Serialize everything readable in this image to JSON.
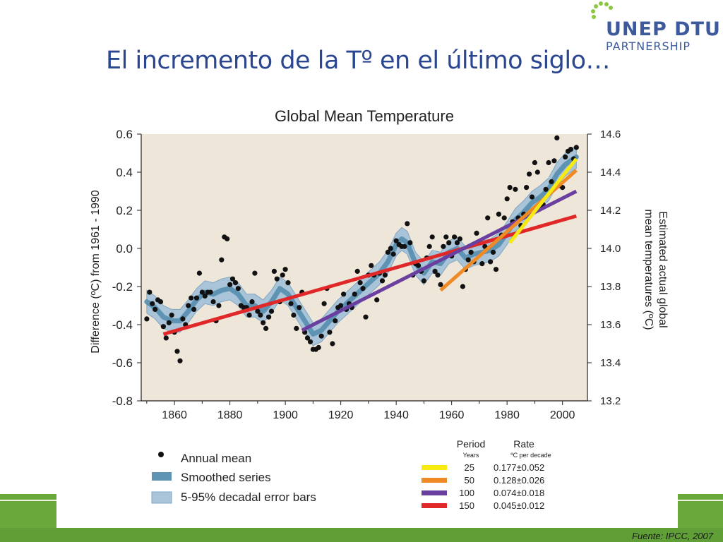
{
  "slide": {
    "title": "El incremento de la Tº en el último siglo…",
    "source": "Fuente: IPCC, 2007"
  },
  "logo": {
    "line1": "UNEP DTU",
    "line2": "PARTNERSHIP"
  },
  "colors": {
    "title": "#2a4690",
    "plot_bg": "#efe6da",
    "band_outer": "#a9c4d8",
    "band_inner": "#5e93b3",
    "green": "#5f9f35"
  },
  "chart_data": {
    "type": "scatter",
    "title": "Global Mean Temperature",
    "ylabel": "Difference (ºC) from 1961 - 1990",
    "y2label_line1": "Estimated actual global",
    "y2label_line2": "mean temperatures (ºC)",
    "xlim": [
      1848,
      2009
    ],
    "ylim": [
      -0.8,
      0.6
    ],
    "y2lim": [
      13.2,
      14.6
    ],
    "xticks": [
      1860,
      1880,
      1900,
      1920,
      1940,
      1960,
      1980,
      2000
    ],
    "yticks": [
      -0.8,
      -0.6,
      -0.4,
      -0.2,
      0.0,
      0.2,
      0.4,
      0.6
    ],
    "ytick_labels": [
      "-0.8",
      "-0.6",
      "-0.4",
      "-0.2",
      "0.0",
      "0.2",
      "0.4",
      "0.6"
    ],
    "y2ticks": [
      13.2,
      13.4,
      13.6,
      13.8,
      14.0,
      14.2,
      14.4,
      14.6
    ],
    "y2tick_labels": [
      "13.2",
      "13.4",
      "13.6",
      "13.8",
      "14.0",
      "14.2",
      "14.4",
      "14.6"
    ],
    "annual_mean": [
      [
        1850,
        -0.37
      ],
      [
        1851,
        -0.23
      ],
      [
        1852,
        -0.29
      ],
      [
        1853,
        -0.32
      ],
      [
        1854,
        -0.27
      ],
      [
        1855,
        -0.28
      ],
      [
        1856,
        -0.41
      ],
      [
        1857,
        -0.47
      ],
      [
        1858,
        -0.39
      ],
      [
        1859,
        -0.35
      ],
      [
        1860,
        -0.44
      ],
      [
        1861,
        -0.54
      ],
      [
        1862,
        -0.59
      ],
      [
        1863,
        -0.37
      ],
      [
        1864,
        -0.4
      ],
      [
        1865,
        -0.3
      ],
      [
        1866,
        -0.26
      ],
      [
        1867,
        -0.32
      ],
      [
        1868,
        -0.26
      ],
      [
        1869,
        -0.13
      ],
      [
        1870,
        -0.23
      ],
      [
        1871,
        -0.25
      ],
      [
        1872,
        -0.23
      ],
      [
        1873,
        -0.23
      ],
      [
        1874,
        -0.28
      ],
      [
        1875,
        -0.38
      ],
      [
        1876,
        -0.3
      ],
      [
        1877,
        -0.06
      ],
      [
        1878,
        0.06
      ],
      [
        1879,
        0.05
      ],
      [
        1880,
        -0.19
      ],
      [
        1881,
        -0.16
      ],
      [
        1882,
        -0.18
      ],
      [
        1883,
        -0.21
      ],
      [
        1884,
        -0.3
      ],
      [
        1885,
        -0.31
      ],
      [
        1886,
        -0.31
      ],
      [
        1887,
        -0.35
      ],
      [
        1888,
        -0.28
      ],
      [
        1889,
        -0.13
      ],
      [
        1890,
        -0.33
      ],
      [
        1891,
        -0.35
      ],
      [
        1892,
        -0.39
      ],
      [
        1893,
        -0.42
      ],
      [
        1894,
        -0.36
      ],
      [
        1895,
        -0.33
      ],
      [
        1896,
        -0.12
      ],
      [
        1897,
        -0.16
      ],
      [
        1898,
        -0.28
      ],
      [
        1899,
        -0.14
      ],
      [
        1900,
        -0.11
      ],
      [
        1901,
        -0.18
      ],
      [
        1902,
        -0.29
      ],
      [
        1903,
        -0.35
      ],
      [
        1904,
        -0.42
      ],
      [
        1905,
        -0.31
      ],
      [
        1906,
        -0.23
      ],
      [
        1907,
        -0.44
      ],
      [
        1908,
        -0.47
      ],
      [
        1909,
        -0.49
      ],
      [
        1910,
        -0.53
      ],
      [
        1911,
        -0.53
      ],
      [
        1912,
        -0.52
      ],
      [
        1913,
        -0.46
      ],
      [
        1914,
        -0.29
      ],
      [
        1915,
        -0.21
      ],
      [
        1916,
        -0.44
      ],
      [
        1917,
        -0.5
      ],
      [
        1918,
        -0.38
      ],
      [
        1919,
        -0.31
      ],
      [
        1920,
        -0.3
      ],
      [
        1921,
        -0.24
      ],
      [
        1922,
        -0.32
      ],
      [
        1923,
        -0.29
      ],
      [
        1924,
        -0.31
      ],
      [
        1925,
        -0.24
      ],
      [
        1926,
        -0.12
      ],
      [
        1927,
        -0.18
      ],
      [
        1928,
        -0.21
      ],
      [
        1929,
        -0.36
      ],
      [
        1930,
        -0.14
      ],
      [
        1931,
        -0.09
      ],
      [
        1932,
        -0.14
      ],
      [
        1933,
        -0.27
      ],
      [
        1934,
        -0.13
      ],
      [
        1935,
        -0.17
      ],
      [
        1936,
        -0.14
      ],
      [
        1937,
        -0.02
      ],
      [
        1938,
        0.0
      ],
      [
        1939,
        -0.03
      ],
      [
        1940,
        0.04
      ],
      [
        1941,
        0.02
      ],
      [
        1942,
        0.01
      ],
      [
        1943,
        0.01
      ],
      [
        1944,
        0.13
      ],
      [
        1945,
        0.03
      ],
      [
        1946,
        -0.14
      ],
      [
        1947,
        -0.08
      ],
      [
        1948,
        -0.09
      ],
      [
        1949,
        -0.12
      ],
      [
        1950,
        -0.17
      ],
      [
        1951,
        -0.05
      ],
      [
        1952,
        0.01
      ],
      [
        1953,
        0.06
      ],
      [
        1954,
        -0.12
      ],
      [
        1955,
        -0.14
      ],
      [
        1956,
        -0.19
      ],
      [
        1957,
        0.01
      ],
      [
        1958,
        0.06
      ],
      [
        1959,
        0.03
      ],
      [
        1960,
        -0.04
      ],
      [
        1961,
        0.06
      ],
      [
        1962,
        0.03
      ],
      [
        1963,
        0.05
      ],
      [
        1964,
        -0.2
      ],
      [
        1965,
        -0.11
      ],
      [
        1966,
        -0.06
      ],
      [
        1967,
        -0.02
      ],
      [
        1968,
        -0.07
      ],
      [
        1969,
        0.08
      ],
      [
        1970,
        0.03
      ],
      [
        1971,
        -0.08
      ],
      [
        1972,
        0.01
      ],
      [
        1973,
        0.16
      ],
      [
        1974,
        -0.07
      ],
      [
        1975,
        -0.02
      ],
      [
        1976,
        -0.11
      ],
      [
        1977,
        0.18
      ],
      [
        1978,
        0.07
      ],
      [
        1979,
        0.16
      ],
      [
        1980,
        0.26
      ],
      [
        1981,
        0.32
      ],
      [
        1982,
        0.14
      ],
      [
        1983,
        0.31
      ],
      [
        1984,
        0.16
      ],
      [
        1985,
        0.12
      ],
      [
        1986,
        0.18
      ],
      [
        1987,
        0.32
      ],
      [
        1988,
        0.39
      ],
      [
        1989,
        0.27
      ],
      [
        1990,
        0.45
      ],
      [
        1991,
        0.4
      ],
      [
        1992,
        0.22
      ],
      [
        1993,
        0.23
      ],
      [
        1994,
        0.31
      ],
      [
        1995,
        0.45
      ],
      [
        1996,
        0.35
      ],
      [
        1997,
        0.46
      ],
      [
        1998,
        0.58
      ],
      [
        1999,
        0.33
      ],
      [
        2000,
        0.32
      ],
      [
        2001,
        0.48
      ],
      [
        2002,
        0.51
      ],
      [
        2003,
        0.52
      ],
      [
        2004,
        0.47
      ],
      [
        2005,
        0.53
      ]
    ],
    "smoothed_series": [
      [
        1850,
        -0.28
      ],
      [
        1853,
        -0.31
      ],
      [
        1856,
        -0.36
      ],
      [
        1859,
        -0.38
      ],
      [
        1862,
        -0.38
      ],
      [
        1865,
        -0.33
      ],
      [
        1868,
        -0.27
      ],
      [
        1871,
        -0.23
      ],
      [
        1874,
        -0.24
      ],
      [
        1877,
        -0.22
      ],
      [
        1880,
        -0.21
      ],
      [
        1883,
        -0.24
      ],
      [
        1886,
        -0.3
      ],
      [
        1889,
        -0.3
      ],
      [
        1892,
        -0.33
      ],
      [
        1895,
        -0.28
      ],
      [
        1898,
        -0.21
      ],
      [
        1901,
        -0.24
      ],
      [
        1904,
        -0.31
      ],
      [
        1907,
        -0.38
      ],
      [
        1910,
        -0.45
      ],
      [
        1913,
        -0.43
      ],
      [
        1916,
        -0.38
      ],
      [
        1919,
        -0.33
      ],
      [
        1922,
        -0.29
      ],
      [
        1925,
        -0.25
      ],
      [
        1928,
        -0.21
      ],
      [
        1931,
        -0.17
      ],
      [
        1934,
        -0.13
      ],
      [
        1937,
        -0.07
      ],
      [
        1940,
        0.02
      ],
      [
        1942,
        0.05
      ],
      [
        1944,
        0.03
      ],
      [
        1947,
        -0.08
      ],
      [
        1950,
        -0.13
      ],
      [
        1953,
        -0.07
      ],
      [
        1956,
        -0.08
      ],
      [
        1959,
        -0.02
      ],
      [
        1962,
        0.0
      ],
      [
        1965,
        -0.05
      ],
      [
        1968,
        -0.03
      ],
      [
        1971,
        -0.02
      ],
      [
        1974,
        -0.01
      ],
      [
        1977,
        0.02
      ],
      [
        1980,
        0.08
      ],
      [
        1983,
        0.15
      ],
      [
        1986,
        0.19
      ],
      [
        1989,
        0.24
      ],
      [
        1992,
        0.27
      ],
      [
        1995,
        0.31
      ],
      [
        1998,
        0.39
      ],
      [
        2001,
        0.44
      ],
      [
        2005,
        0.48
      ]
    ],
    "band_halfwidth": 0.06,
    "trend_lines": [
      {
        "period": 150,
        "color": "#e02828",
        "x": [
          1856,
          2005
        ],
        "y": [
          -0.45,
          0.17
        ]
      },
      {
        "period": 100,
        "color": "#6a3fa0",
        "x": [
          1906,
          2005
        ],
        "y": [
          -0.43,
          0.3
        ]
      },
      {
        "period": 50,
        "color": "#f08a24",
        "x": [
          1956,
          2005
        ],
        "y": [
          -0.22,
          0.41
        ]
      },
      {
        "period": 25,
        "color": "#f6ea10",
        "x": [
          1981,
          2005
        ],
        "y": [
          0.03,
          0.47
        ]
      }
    ],
    "legend": {
      "annual_mean": "Annual mean",
      "smoothed": "Smoothed series",
      "error_bars": "5-95% decadal error bars"
    },
    "rate_table": {
      "col_period": "Period",
      "col_period_sub": "Years",
      "col_rate": "Rate",
      "col_rate_sub": "ºC  per decade",
      "rows": [
        {
          "years": "25",
          "rate": "0.177±0.052",
          "color": "#f6ea10"
        },
        {
          "years": "50",
          "rate": "0.128±0.026",
          "color": "#f08a24"
        },
        {
          "years": "100",
          "rate": "0.074±0.018",
          "color": "#6a3fa0"
        },
        {
          "years": "150",
          "rate": "0.045±0.012",
          "color": "#e02828"
        }
      ]
    }
  }
}
